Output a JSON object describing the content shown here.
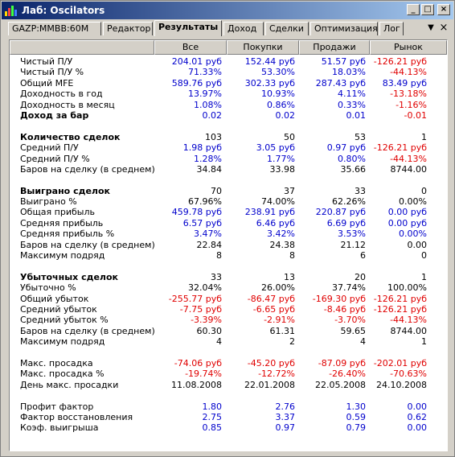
{
  "window": {
    "title": "Лаб: Oscilators",
    "icon": "bar-chart-icon",
    "buttons": {
      "minimize": "_",
      "maximize": "□",
      "close": "×"
    }
  },
  "tabs": [
    {
      "label": "GAZP:MMBB:60M"
    },
    {
      "label": "Редактор"
    },
    {
      "label": "Результаты",
      "active": true
    },
    {
      "label": "Доход"
    },
    {
      "label": "Сделки"
    },
    {
      "label": "Оптимизация"
    },
    {
      "label": "Лог"
    }
  ],
  "tab_controls": {
    "pin": "▼",
    "close": "×"
  },
  "table": {
    "columns": [
      "Все",
      "Покупки",
      "Продажи",
      "Рынок"
    ],
    "rows": [
      {
        "label": "Чистый П/У",
        "values": [
          "204.01 руб",
          "152.44 руб",
          "51.57 руб",
          "-126.21 руб"
        ],
        "colors": [
          "blue",
          "blue",
          "blue",
          "red"
        ]
      },
      {
        "label": "Чистый П/У %",
        "values": [
          "71.33%",
          "53.30%",
          "18.03%",
          "-44.13%"
        ],
        "colors": [
          "blue",
          "blue",
          "blue",
          "red"
        ]
      },
      {
        "label": "Общий MFE",
        "values": [
          "589.76 руб",
          "302.33 руб",
          "287.43 руб",
          "83.49 руб"
        ],
        "colors": [
          "blue",
          "blue",
          "blue",
          "blue"
        ]
      },
      {
        "label": "Доходность в год",
        "values": [
          "13.97%",
          "10.93%",
          "4.11%",
          "-13.18%"
        ],
        "colors": [
          "blue",
          "blue",
          "blue",
          "red"
        ]
      },
      {
        "label": "Доходность в месяц",
        "values": [
          "1.08%",
          "0.86%",
          "0.33%",
          "-1.16%"
        ],
        "colors": [
          "blue",
          "blue",
          "blue",
          "red"
        ]
      },
      {
        "label": "Доход за бар",
        "bold": true,
        "values": [
          "0.02",
          "0.02",
          "0.01",
          "-0.01"
        ],
        "colors": [
          "blue",
          "blue",
          "blue",
          "red"
        ]
      },
      {
        "label": "",
        "values": [
          "",
          "",
          "",
          ""
        ],
        "colors": []
      },
      {
        "label": "Количество сделок",
        "bold": true,
        "values": [
          "103",
          "50",
          "53",
          "1"
        ],
        "colors": [
          "black",
          "black",
          "black",
          "black"
        ]
      },
      {
        "label": "Средний П/У",
        "values": [
          "1.98 руб",
          "3.05 руб",
          "0.97 руб",
          "-126.21 руб"
        ],
        "colors": [
          "blue",
          "blue",
          "blue",
          "red"
        ]
      },
      {
        "label": "Средний П/У %",
        "values": [
          "1.28%",
          "1.77%",
          "0.80%",
          "-44.13%"
        ],
        "colors": [
          "blue",
          "blue",
          "blue",
          "red"
        ]
      },
      {
        "label": "Баров на сделку (в среднем)",
        "values": [
          "34.84",
          "33.98",
          "35.66",
          "8744.00"
        ],
        "colors": [
          "black",
          "black",
          "black",
          "black"
        ]
      },
      {
        "label": "",
        "values": [
          "",
          "",
          "",
          ""
        ],
        "colors": []
      },
      {
        "label": "Выиграно сделок",
        "bold": true,
        "values": [
          "70",
          "37",
          "33",
          "0"
        ],
        "colors": [
          "black",
          "black",
          "black",
          "black"
        ]
      },
      {
        "label": "Выиграно %",
        "values": [
          "67.96%",
          "74.00%",
          "62.26%",
          "0.00%"
        ],
        "colors": [
          "black",
          "black",
          "black",
          "black"
        ]
      },
      {
        "label": "Общая прибыль",
        "values": [
          "459.78 руб",
          "238.91 руб",
          "220.87 руб",
          "0.00 руб"
        ],
        "colors": [
          "blue",
          "blue",
          "blue",
          "blue"
        ]
      },
      {
        "label": "Средняя прибыль",
        "values": [
          "6.57 руб",
          "6.46 руб",
          "6.69 руб",
          "0.00 руб"
        ],
        "colors": [
          "blue",
          "blue",
          "blue",
          "blue"
        ]
      },
      {
        "label": "Средняя прибыль %",
        "values": [
          "3.47%",
          "3.42%",
          "3.53%",
          "0.00%"
        ],
        "colors": [
          "blue",
          "blue",
          "blue",
          "blue"
        ]
      },
      {
        "label": "Баров на сделку (в среднем)",
        "values": [
          "22.84",
          "24.38",
          "21.12",
          "0.00"
        ],
        "colors": [
          "black",
          "black",
          "black",
          "black"
        ]
      },
      {
        "label": "Максимум подряд",
        "values": [
          "8",
          "8",
          "6",
          "0"
        ],
        "colors": [
          "black",
          "black",
          "black",
          "black"
        ]
      },
      {
        "label": "",
        "values": [
          "",
          "",
          "",
          ""
        ],
        "colors": []
      },
      {
        "label": "Убыточных сделок",
        "bold": true,
        "values": [
          "33",
          "13",
          "20",
          "1"
        ],
        "colors": [
          "black",
          "black",
          "black",
          "black"
        ]
      },
      {
        "label": "Убыточно %",
        "values": [
          "32.04%",
          "26.00%",
          "37.74%",
          "100.00%"
        ],
        "colors": [
          "black",
          "black",
          "black",
          "black"
        ]
      },
      {
        "label": "Общий убыток",
        "values": [
          "-255.77 руб",
          "-86.47 руб",
          "-169.30 руб",
          "-126.21 руб"
        ],
        "colors": [
          "red",
          "red",
          "red",
          "red"
        ]
      },
      {
        "label": "Средний убыток",
        "values": [
          "-7.75 руб",
          "-6.65 руб",
          "-8.46 руб",
          "-126.21 руб"
        ],
        "colors": [
          "red",
          "red",
          "red",
          "red"
        ]
      },
      {
        "label": "Средний убыток %",
        "values": [
          "-3.39%",
          "-2.91%",
          "-3.70%",
          "-44.13%"
        ],
        "colors": [
          "red",
          "red",
          "red",
          "red"
        ]
      },
      {
        "label": "Баров на сделку (в среднем)",
        "values": [
          "60.30",
          "61.31",
          "59.65",
          "8744.00"
        ],
        "colors": [
          "black",
          "black",
          "black",
          "black"
        ]
      },
      {
        "label": "Максимум подряд",
        "values": [
          "4",
          "2",
          "4",
          "1"
        ],
        "colors": [
          "black",
          "black",
          "black",
          "black"
        ]
      },
      {
        "label": "",
        "values": [
          "",
          "",
          "",
          ""
        ],
        "colors": []
      },
      {
        "label": "Макс. просадка",
        "values": [
          "-74.06 руб",
          "-45.20 руб",
          "-87.09 руб",
          "-202.01 руб"
        ],
        "colors": [
          "red",
          "red",
          "red",
          "red"
        ]
      },
      {
        "label": "Макс. просадка %",
        "values": [
          "-19.74%",
          "-12.72%",
          "-26.40%",
          "-70.63%"
        ],
        "colors": [
          "red",
          "red",
          "red",
          "red"
        ]
      },
      {
        "label": "День макс. просадки",
        "values": [
          "11.08.2008",
          "22.01.2008",
          "22.05.2008",
          "24.10.2008"
        ],
        "colors": [
          "black",
          "black",
          "black",
          "black"
        ]
      },
      {
        "label": "",
        "values": [
          "",
          "",
          "",
          ""
        ],
        "colors": []
      },
      {
        "label": "Профит фактор",
        "values": [
          "1.80",
          "2.76",
          "1.30",
          "0.00"
        ],
        "colors": [
          "blue",
          "blue",
          "blue",
          "blue"
        ]
      },
      {
        "label": "Фактор восстановления",
        "values": [
          "2.75",
          "3.37",
          "0.59",
          "0.62"
        ],
        "colors": [
          "blue",
          "blue",
          "blue",
          "blue"
        ]
      },
      {
        "label": "Коэф. выигрыша",
        "values": [
          "0.85",
          "0.97",
          "0.79",
          "0.00"
        ],
        "colors": [
          "blue",
          "blue",
          "blue",
          "blue"
        ]
      }
    ]
  },
  "colors": {
    "blue": "#0000cc",
    "red": "#e00000",
    "title_bar": "#0a246a",
    "face": "#d4d0c8"
  }
}
